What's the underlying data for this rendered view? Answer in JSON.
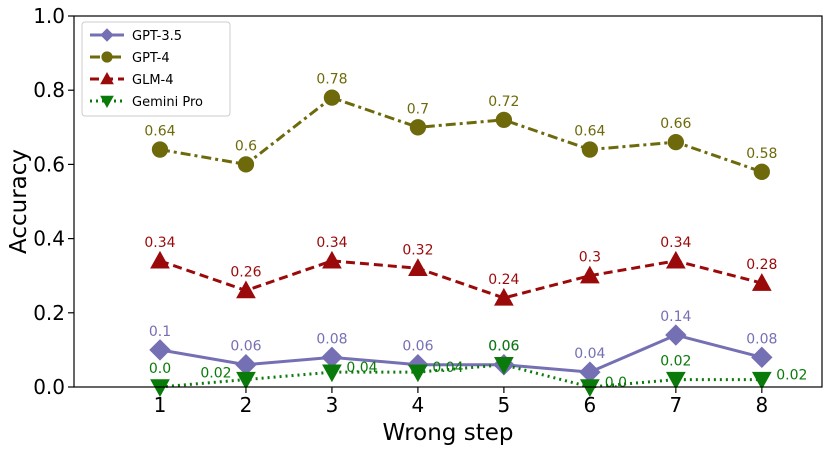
{
  "chart_data": {
    "type": "line",
    "xlabel": "Wrong step",
    "ylabel": "Accuracy",
    "x": [
      1,
      2,
      3,
      4,
      5,
      6,
      7,
      8
    ],
    "xticks": [
      "1",
      "2",
      "3",
      "4",
      "5",
      "6",
      "7",
      "8"
    ],
    "yticks": [
      "0.0",
      "0.2",
      "0.4",
      "0.6",
      "0.8",
      "1.0"
    ],
    "ylim": [
      0,
      1.0
    ],
    "xlim": [
      0,
      8.7
    ],
    "grid": false,
    "legend_position": "top-left",
    "series": [
      {
        "name": "GPT-3.5",
        "color": "#7570b3",
        "linestyle": "solid",
        "marker": "diamond",
        "values": [
          0.1,
          0.06,
          0.08,
          0.06,
          0.06,
          0.04,
          0.14,
          0.08
        ],
        "labels": [
          "0.1",
          "0.06",
          "0.08",
          "0.06",
          "0.06",
          "0.04",
          "0.14",
          "0.08"
        ]
      },
      {
        "name": "GPT-4",
        "color": "#6e6a0c",
        "linestyle": "dashdot",
        "marker": "circle",
        "values": [
          0.64,
          0.6,
          0.78,
          0.7,
          0.72,
          0.64,
          0.66,
          0.58
        ],
        "labels": [
          "0.64",
          "0.6",
          "0.78",
          "0.7",
          "0.72",
          "0.64",
          "0.66",
          "0.58"
        ]
      },
      {
        "name": "GLM-4",
        "color": "#9b0a0a",
        "linestyle": "dashed",
        "marker": "triangle-up",
        "values": [
          0.34,
          0.26,
          0.34,
          0.32,
          0.24,
          0.3,
          0.34,
          0.28
        ],
        "labels": [
          "0.34",
          "0.26",
          "0.34",
          "0.32",
          "0.24",
          "0.3",
          "0.34",
          "0.28"
        ]
      },
      {
        "name": "Gemini Pro",
        "color": "#0a7a0a",
        "linestyle": "dotted",
        "marker": "triangle-down",
        "values": [
          0.0,
          0.02,
          0.04,
          0.04,
          0.06,
          0.0,
          0.02,
          0.02
        ],
        "labels": [
          "0.0",
          "0.02",
          "0.04",
          "0.04",
          "0.06",
          "0.0",
          "0.02",
          "0.02"
        ]
      }
    ]
  }
}
